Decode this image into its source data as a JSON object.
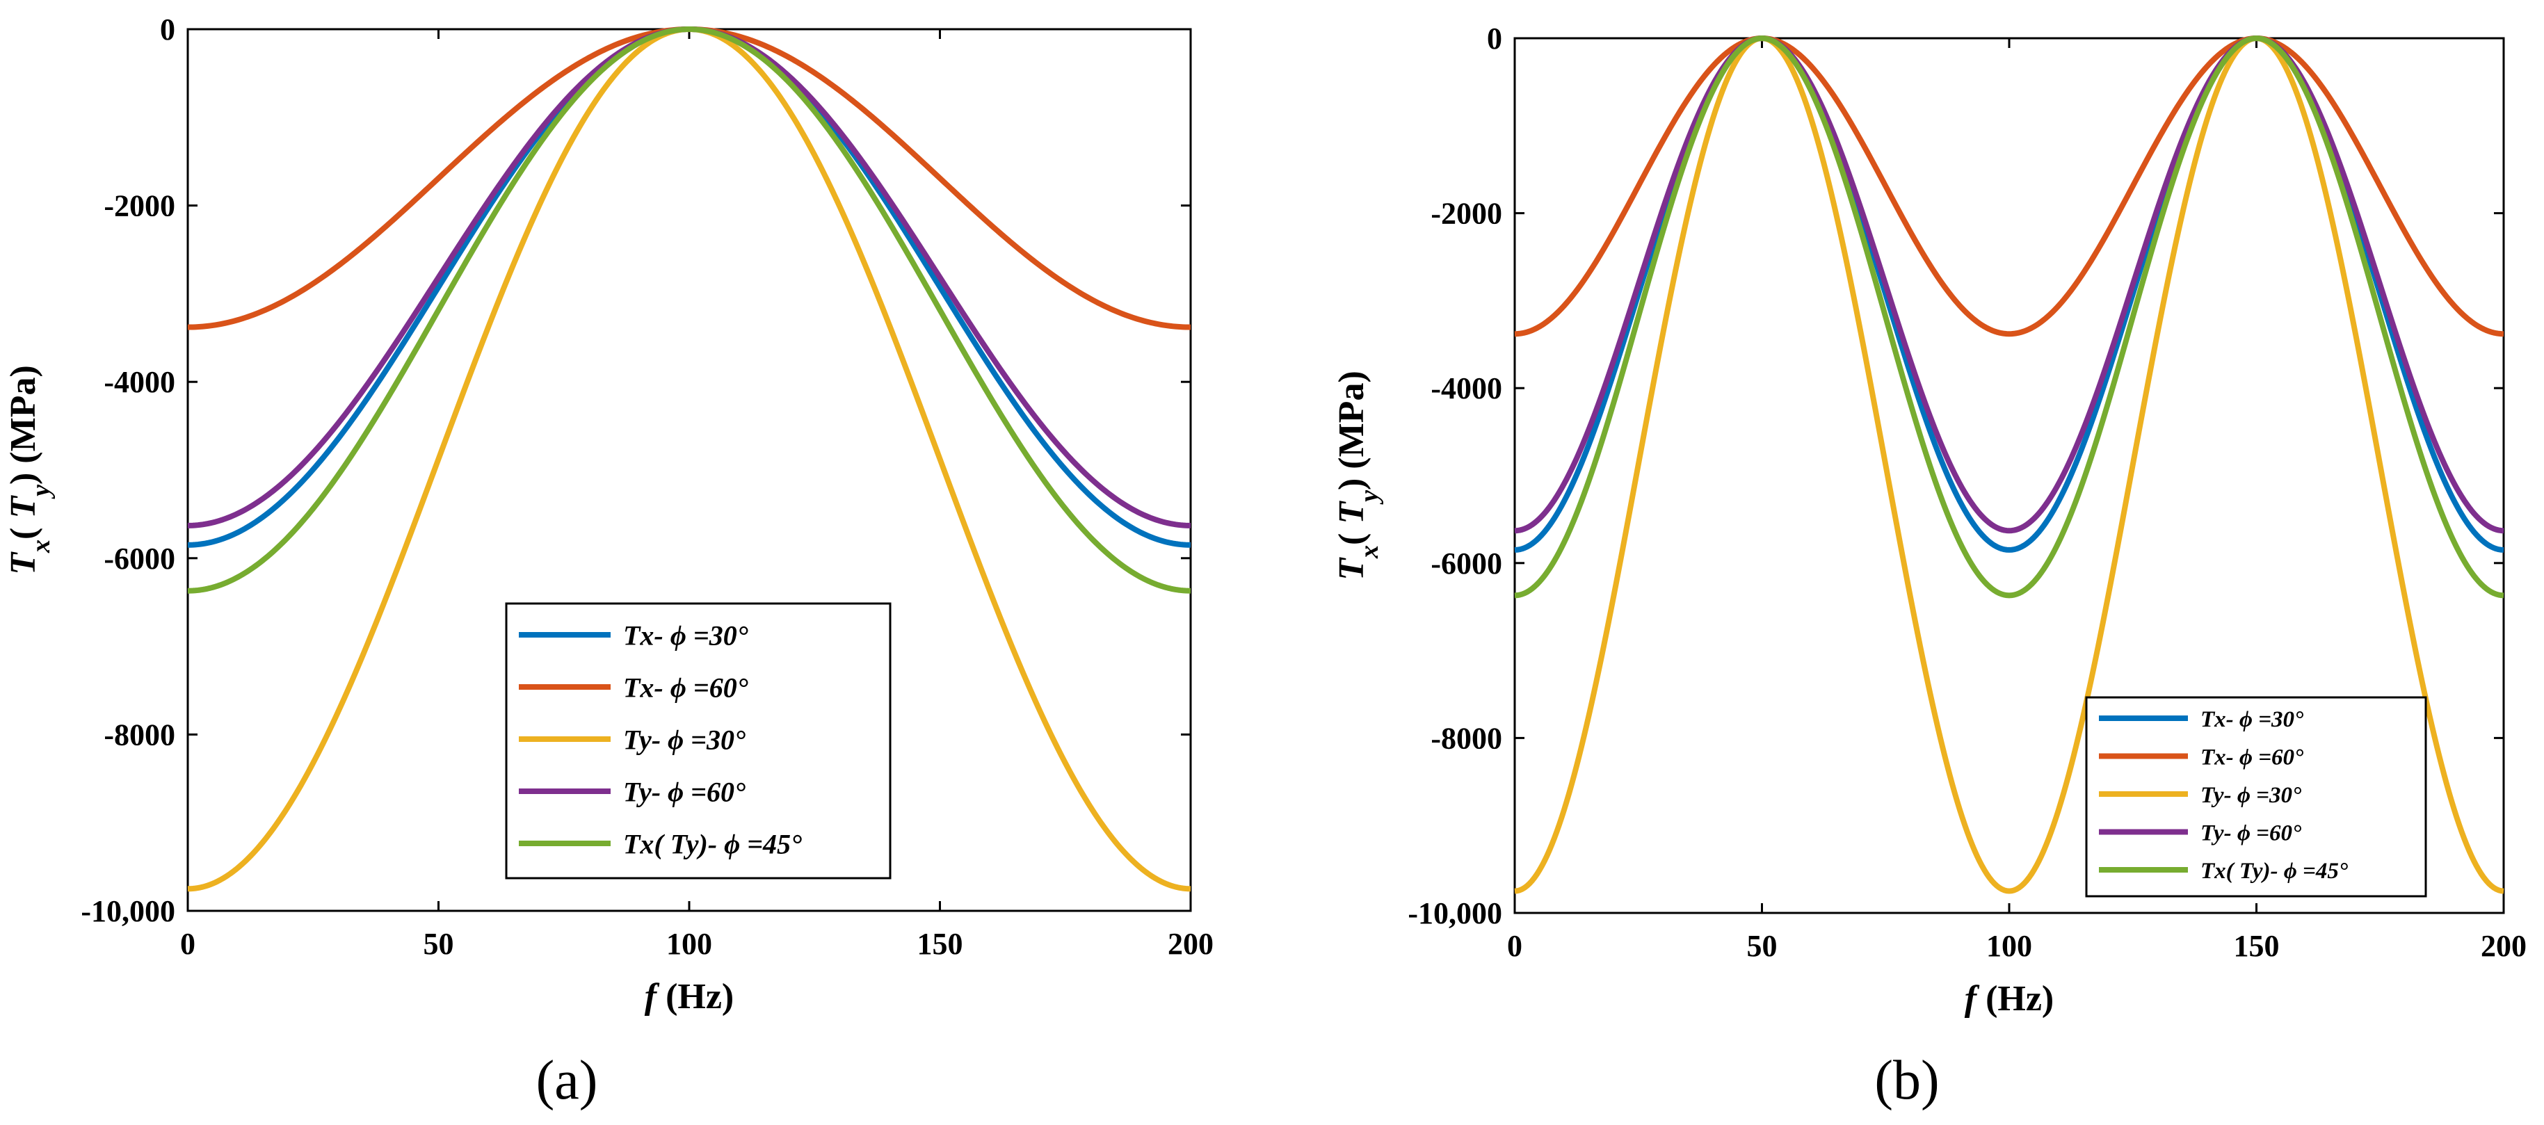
{
  "chart_data": [
    {
      "type": "line",
      "panel_label": "(a)",
      "xlabel": "f (Hz)",
      "xlabel_var": "f",
      "xlabel_unit": "(Hz)",
      "ylabel": "Tx( Ty) (MPa)",
      "ylabel_unit": "(MPa)",
      "xlim": [
        0,
        200
      ],
      "ylim": [
        -10000,
        0
      ],
      "xticks": [
        0,
        50,
        100,
        150,
        200
      ],
      "xtick_labels": [
        "0",
        "50",
        "100",
        "150",
        "200"
      ],
      "yticks": [
        0,
        -2000,
        -4000,
        -6000,
        -8000,
        -10000
      ],
      "ytick_labels": [
        "0",
        "-2000",
        "-4000",
        "-6000",
        "-8000",
        "-10,000"
      ],
      "grid": false,
      "legend_position": "bottom-right",
      "curve": "T(f) = -A * sin^2(pi * (f - center) / period)",
      "center": 100,
      "period": 200,
      "series": [
        {
          "name": "Tx- ϕ =30°",
          "amplitude": 5850,
          "color": "#0072BD"
        },
        {
          "name": "Tx- ϕ =60°",
          "amplitude": 3380,
          "color": "#D95319"
        },
        {
          "name": "Ty- ϕ =30°",
          "amplitude": 9750,
          "color": "#EDB120"
        },
        {
          "name": "Ty- ϕ =60°",
          "amplitude": 5630,
          "color": "#7E2F8E"
        },
        {
          "name": "Tx( Ty)- ϕ =45°",
          "amplitude": 6370,
          "color": "#77AC30"
        }
      ]
    },
    {
      "type": "line",
      "panel_label": "(b)",
      "xlabel": "f (Hz)",
      "xlabel_var": "f",
      "xlabel_unit": "(Hz)",
      "ylabel": "Tx( Ty) (MPa)",
      "ylabel_unit": "(MPa)",
      "xlim": [
        0,
        200
      ],
      "ylim": [
        -10000,
        0
      ],
      "xticks": [
        0,
        50,
        100,
        150,
        200
      ],
      "xtick_labels": [
        "0",
        "50",
        "100",
        "150",
        "200"
      ],
      "yticks": [
        0,
        -2000,
        -4000,
        -6000,
        -8000,
        -10000
      ],
      "ytick_labels": [
        "0",
        "-2000",
        "-4000",
        "-6000",
        "-8000",
        "-10,000"
      ],
      "grid": false,
      "legend_position": "bottom-right",
      "curve": "T(f) = -A * sin^2(pi * (f - center) / period)",
      "center": 50,
      "period": 100,
      "series": [
        {
          "name": "Tx- ϕ =30°",
          "amplitude": 5850,
          "color": "#0072BD"
        },
        {
          "name": "Tx- ϕ =60°",
          "amplitude": 3380,
          "color": "#D95319"
        },
        {
          "name": "Ty- ϕ =30°",
          "amplitude": 9750,
          "color": "#EDB120"
        },
        {
          "name": "Ty- ϕ =60°",
          "amplitude": 5630,
          "color": "#7E2F8E"
        },
        {
          "name": "Tx( Ty)- ϕ =45°",
          "amplitude": 6370,
          "color": "#77AC30"
        }
      ]
    }
  ]
}
